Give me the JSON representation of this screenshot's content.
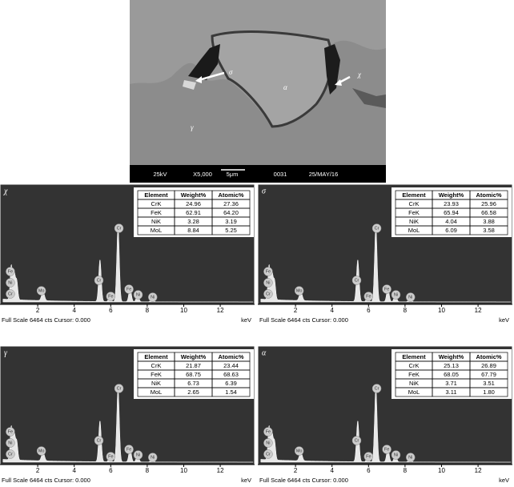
{
  "image": {
    "labels": [
      "σ",
      "α",
      "χ",
      "γ"
    ],
    "info": [
      "25kV",
      "X5,000",
      "5μm",
      "0031",
      "25/MAY/16"
    ]
  },
  "panels": [
    {
      "label": "χ",
      "table": {
        "header": [
          "Element",
          "Weight%",
          "Atomic%"
        ],
        "rows": [
          [
            "CrK",
            "24.96",
            "27.36"
          ],
          [
            "FeK",
            "62.91",
            "64.20"
          ],
          [
            "NiK",
            "3.28",
            "3.19"
          ],
          [
            "MoL",
            "8.84",
            "5.25"
          ]
        ]
      },
      "peak_labels": [
        "Fe",
        "Ni",
        "Cr",
        "Mo",
        "Cr",
        "Fe",
        "Cr",
        "Fe",
        "Ni",
        "Ni"
      ],
      "xticks": [
        "2",
        "4",
        "6",
        "8",
        "10",
        "12"
      ],
      "footer": "Full Scale 6464 cts Cursor: 0.000",
      "unit": "keV"
    },
    {
      "label": "σ",
      "table": {
        "header": [
          "Element",
          "Weight%",
          "Atomic%"
        ],
        "rows": [
          [
            "CrK",
            "23.93",
            "25.96"
          ],
          [
            "FeK",
            "65.94",
            "66.58"
          ],
          [
            "NiK",
            "4.04",
            "3.88"
          ],
          [
            "MoL",
            "6.09",
            "3.58"
          ]
        ]
      },
      "peak_labels": [
        "Fe",
        "Ni",
        "Cr",
        "Mo",
        "Cr",
        "Fe",
        "Cr",
        "Fe",
        "Ni",
        "Ni"
      ],
      "xticks": [
        "2",
        "4",
        "6",
        "8",
        "10",
        "12"
      ],
      "footer": "Full Scale 6464 cts Cursor: 0.000",
      "unit": "keV"
    },
    {
      "label": "γ",
      "table": {
        "header": [
          "Element",
          "Weight%",
          "Atomic%"
        ],
        "rows": [
          [
            "CrK",
            "21.87",
            "23.44"
          ],
          [
            "FeK",
            "68.75",
            "68.63"
          ],
          [
            "NiK",
            "6.73",
            "6.39"
          ],
          [
            "MoL",
            "2.65",
            "1.54"
          ]
        ]
      },
      "peak_labels": [
        "Fe",
        "Ni",
        "Cr",
        "Mo",
        "Cr",
        "Fe",
        "Cr",
        "Fe",
        "Ni",
        "Ni"
      ],
      "xticks": [
        "2",
        "4",
        "6",
        "8",
        "10",
        "12"
      ],
      "footer": "Full Scale 6464 cts Cursor: 0.000",
      "unit": "keV"
    },
    {
      "label": "α",
      "table": {
        "header": [
          "Element",
          "Weight%",
          "Atomic%"
        ],
        "rows": [
          [
            "CrK",
            "25.13",
            "26.89"
          ],
          [
            "FeK",
            "68.05",
            "67.79"
          ],
          [
            "NiK",
            "3.71",
            "3.51"
          ],
          [
            "MoL",
            "3.11",
            "1.80"
          ]
        ]
      },
      "peak_labels": [
        "Fe",
        "Ni",
        "Cr",
        "Mo",
        "Cr",
        "Fe",
        "Cr",
        "Fe",
        "Ni",
        "Ni"
      ],
      "xticks": [
        "2",
        "4",
        "6",
        "8",
        "10",
        "12"
      ],
      "footer": "Full Scale 6464 cts Cursor: 0.000",
      "unit": "keV"
    }
  ]
}
